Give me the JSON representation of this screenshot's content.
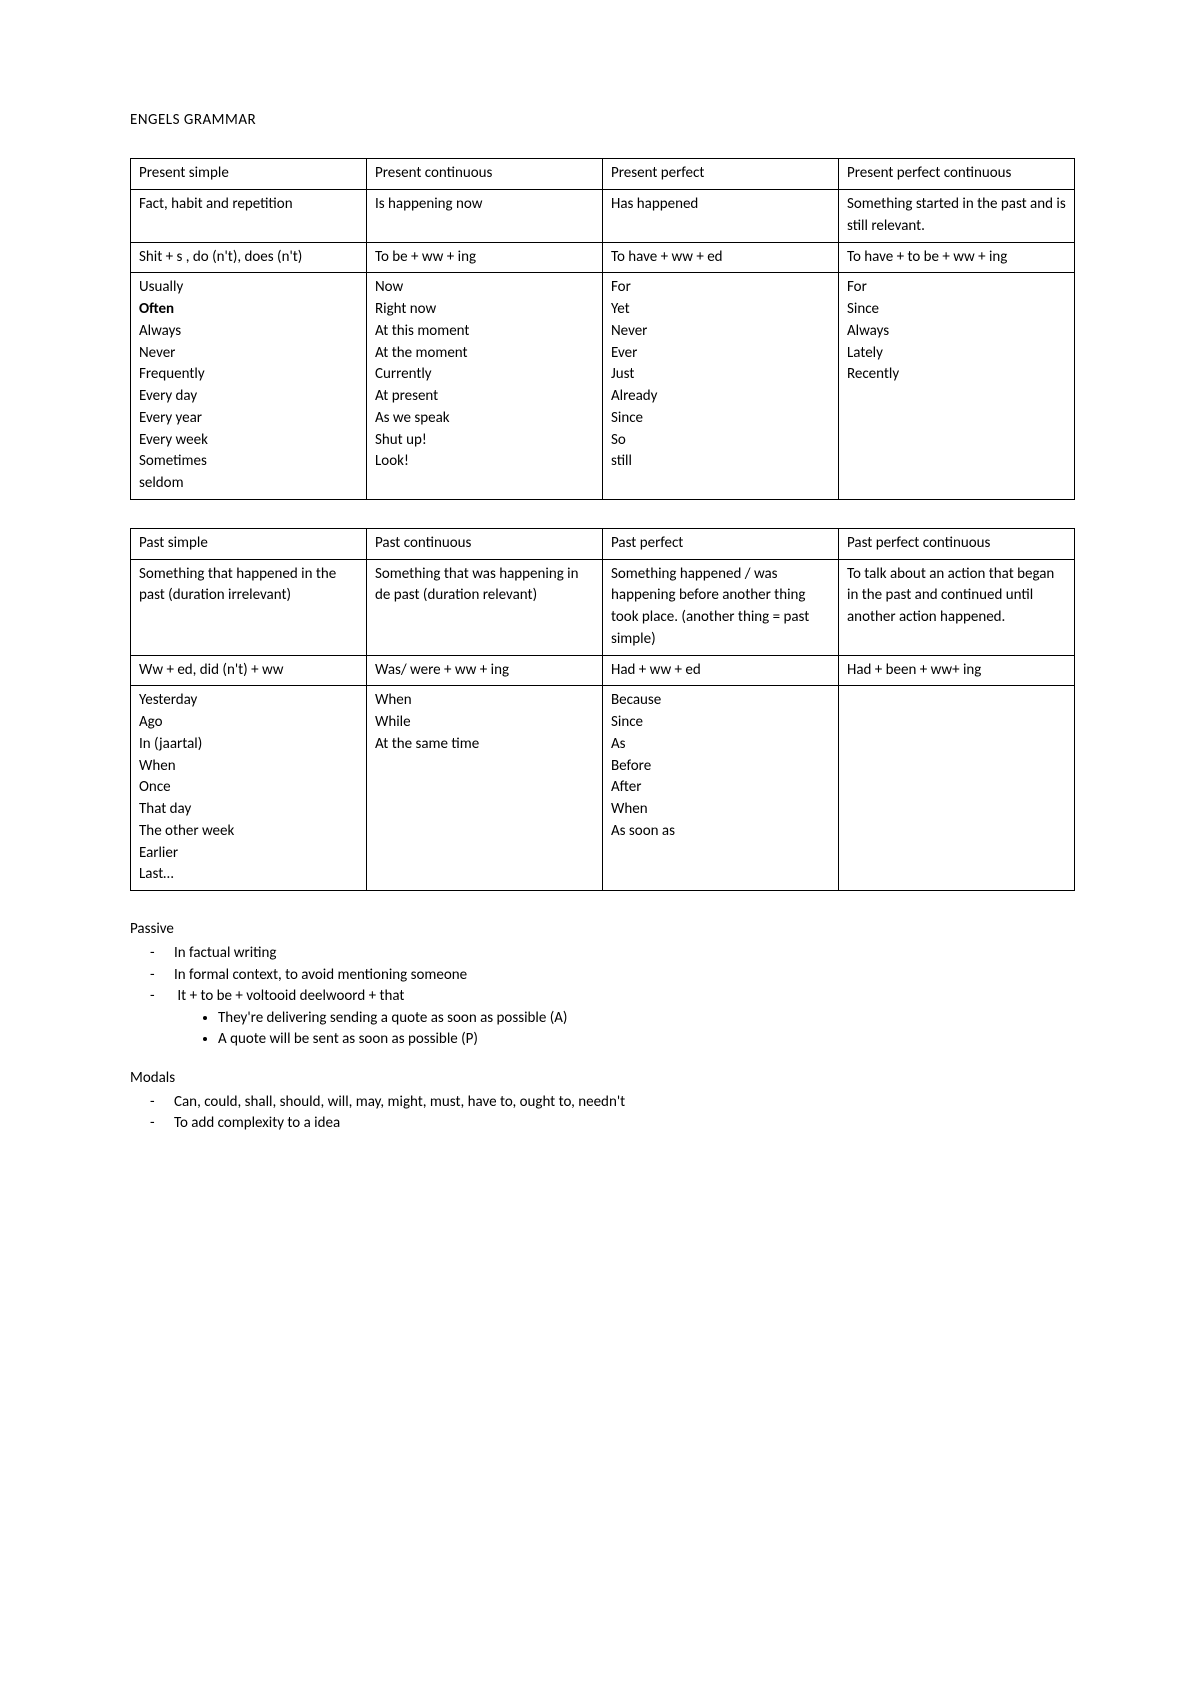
{
  "title": "ENGELS GRAMMAR",
  "table1": {
    "headers": [
      "Present simple",
      "Present continuous",
      "Present perfect",
      "Present perfect continuous"
    ],
    "descriptions": [
      "Fact, habit and repetition",
      "Is happening now",
      "Has happened",
      "Something started in the past and is still relevant."
    ],
    "forms": [
      "Shit + s , do (n't), does (n't)",
      "To be + ww + ing",
      "To have + ww + ed",
      "To have + to be + ww + ing"
    ],
    "adverbs": {
      "col0": [
        {
          "text": "Usually"
        },
        {
          "text": "Often",
          "bold": true
        },
        {
          "text": "Always"
        },
        {
          "text": "Never"
        },
        {
          "text": "Frequently"
        },
        {
          "text": "Every day"
        },
        {
          "text": "Every year"
        },
        {
          "text": "Every week"
        },
        {
          "text": "Sometimes"
        },
        {
          "text": "seldom"
        }
      ],
      "col1": [
        {
          "text": "Now"
        },
        {
          "text": "Right now"
        },
        {
          "text": "At this moment"
        },
        {
          "text": "At the moment"
        },
        {
          "text": "Currently"
        },
        {
          "text": "At present"
        },
        {
          "text": "As we speak"
        },
        {
          "text": "Shut up!"
        },
        {
          "text": "Look!"
        }
      ],
      "col2": [
        {
          "text": "For"
        },
        {
          "text": "Yet"
        },
        {
          "text": "Never"
        },
        {
          "text": "Ever"
        },
        {
          "text": "Just"
        },
        {
          "text": "Already"
        },
        {
          "text": "Since"
        },
        {
          "text": "So"
        },
        {
          "text": "still"
        }
      ],
      "col3": [
        {
          "text": "For"
        },
        {
          "text": "Since"
        },
        {
          "text": "Always"
        },
        {
          "text": "Lately"
        },
        {
          "text": "Recently"
        }
      ]
    }
  },
  "table2": {
    "headers": [
      "Past simple",
      "Past continuous",
      "Past perfect",
      "Past perfect continuous"
    ],
    "descriptions": [
      "Something that happened in the past (duration irrelevant)",
      "Something that was happening in de past (duration relevant)",
      "Something happened / was happening before another thing took place. (another thing = past simple)",
      "To talk about an action that began in the past and continued until another action happened."
    ],
    "forms": [
      "Ww + ed, did (n't) + ww",
      "Was/ were + ww + ing",
      "Had + ww + ed",
      "Had + been + ww+ ing"
    ],
    "adverbs": {
      "col0": [
        {
          "text": "Yesterday"
        },
        {
          "text": "Ago"
        },
        {
          "text": "In (jaartal)"
        },
        {
          "text": "When"
        },
        {
          "text": "Once"
        },
        {
          "text": "That day"
        },
        {
          "text": "The other week"
        },
        {
          "text": "Earlier"
        },
        {
          "text": "Last…"
        }
      ],
      "col1": [
        {
          "text": "When"
        },
        {
          "text": "While"
        },
        {
          "text": "At the same time"
        }
      ],
      "col2": [
        {
          "text": "Because"
        },
        {
          "text": "Since"
        },
        {
          "text": "As"
        },
        {
          "text": "Before"
        },
        {
          "text": "After"
        },
        {
          "text": "When"
        },
        {
          "text": "As soon as"
        }
      ],
      "col3": []
    }
  },
  "passive": {
    "heading": "Passive",
    "items": [
      "In factual writing",
      "In formal context, to avoid mentioning someone",
      "It + to be + voltooid deelwoord + that"
    ],
    "subitems": [
      "They're delivering sending a quote as soon as possible (A)",
      "A quote will be sent as soon as possible (P)"
    ]
  },
  "modals": {
    "heading": "Modals",
    "items": [
      "Can, could, shall, should, will, may, might, must, have to, ought to, needn't",
      "To add complexity to a idea"
    ]
  }
}
